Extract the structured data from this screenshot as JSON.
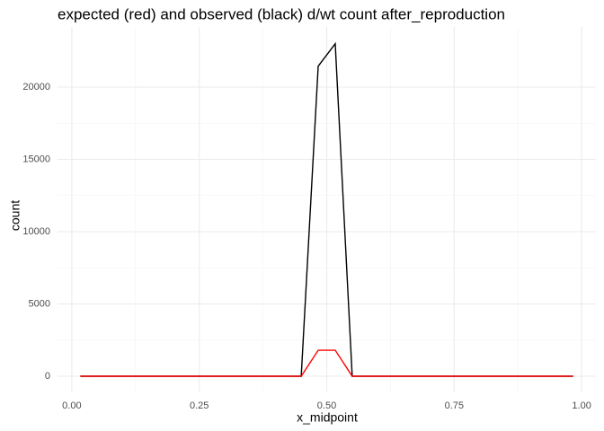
{
  "chart_data": {
    "type": "line",
    "title": "expected (red) and observed (black) d/wt count after_reproduction",
    "x_label": "x_midpoint",
    "y_label": "count",
    "x": [
      0.0167,
      0.05,
      0.0833,
      0.1167,
      0.15,
      0.1833,
      0.2167,
      0.25,
      0.2833,
      0.3167,
      0.35,
      0.3833,
      0.4167,
      0.45,
      0.4833,
      0.5167,
      0.55,
      0.5833,
      0.6167,
      0.65,
      0.6833,
      0.7167,
      0.75,
      0.7833,
      0.8167,
      0.85,
      0.8833,
      0.9167,
      0.95,
      0.9833
    ],
    "series": [
      {
        "color": "#000000",
        "values": [
          0,
          0,
          0,
          0,
          0,
          0,
          0,
          0,
          0,
          0,
          0,
          0,
          0,
          0,
          21450,
          23000,
          0,
          0,
          0,
          0,
          0,
          0,
          0,
          0,
          0,
          0,
          0,
          0,
          0,
          0
        ]
      },
      {
        "color": "#ff0000",
        "values": [
          0,
          0,
          0,
          0,
          0,
          0,
          0,
          0,
          0,
          0,
          0,
          0,
          0,
          0,
          1800,
          1800,
          0,
          0,
          0,
          0,
          0,
          0,
          0,
          0,
          0,
          0,
          0,
          0,
          0,
          0
        ]
      }
    ],
    "xlim": [
      -0.028,
      1.028
    ],
    "ylim": [
      -1056,
      24161
    ],
    "xticks": [
      {
        "value": 0,
        "label": "0.00"
      },
      {
        "value": 0.25,
        "label": "0.25"
      },
      {
        "value": 0.5,
        "label": "0.50"
      },
      {
        "value": 0.75,
        "label": "0.75"
      },
      {
        "value": 1,
        "label": "1.00"
      }
    ],
    "yticks": [
      0,
      5000,
      10000,
      15000,
      20000
    ],
    "grid": true
  }
}
